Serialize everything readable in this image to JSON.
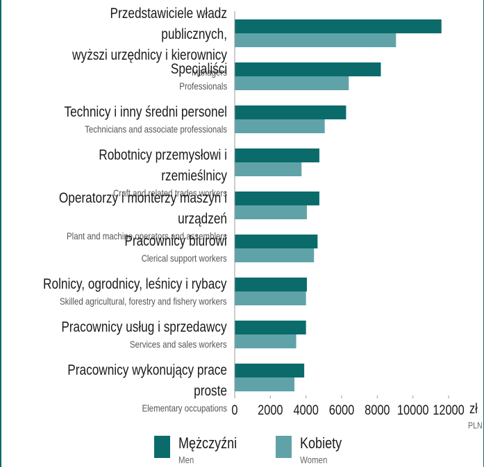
{
  "chart_data": {
    "type": "barh",
    "categories": [
      "Przedstawiciele władz publicznych,\nwyższi urzędnicy i kierownicy",
      "Specjaliści",
      "Technicy i inny średni personel",
      "Robotnicy przemysłowi i rzemieślnicy",
      "Operatorzy i monterzy maszyn i urządzeń",
      "Pracownicy biurowi",
      "Rolnicy, ogrodnicy, leśnicy i rybacy",
      "Pracownicy usług i sprzedawcy",
      "Pracownicy wykonujący prace proste"
    ],
    "categories_en": [
      "Managers",
      "Professionals",
      "Technicians and associate professionals",
      "Craft and related trades workers",
      "Plant and machine operators and assemblers",
      "Clerical support workers",
      "Skilled agricultural, forestry and fishery workers",
      "Services and sales workers",
      "Elementary occupations"
    ],
    "series": [
      {
        "name": "Mężczyźni",
        "name_en": "Men",
        "color": "#0b6b6b",
        "values": [
          11600,
          8200,
          6250,
          4750,
          4750,
          4650,
          4050,
          4000,
          3900
        ]
      },
      {
        "name": "Kobiety",
        "name_en": "Women",
        "color": "#5fa3a8",
        "values": [
          9050,
          6400,
          5050,
          3750,
          4050,
          4450,
          4000,
          3450,
          3350
        ]
      }
    ],
    "xlim": [
      0,
      12000
    ],
    "xticks": [
      0,
      2000,
      4000,
      6000,
      8000,
      10000,
      12000
    ],
    "x_unit": "zł",
    "x_unit_en": "PLN"
  }
}
